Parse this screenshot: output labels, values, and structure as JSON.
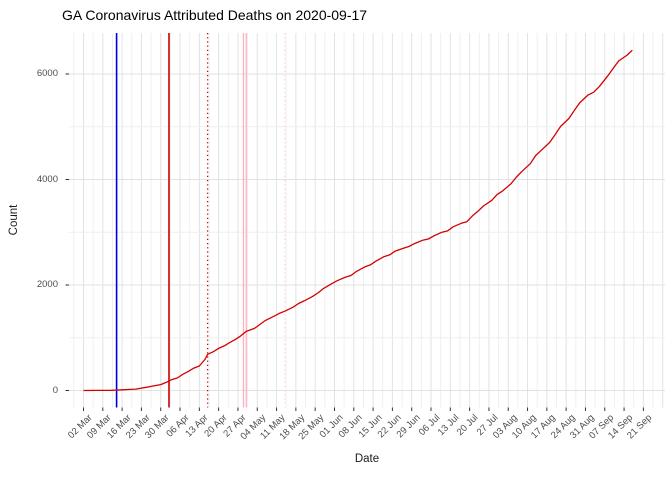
{
  "page": {
    "title": "GA Coronavirus Attributed Deaths on 2020-09-17"
  },
  "chart_data": {
    "type": "line",
    "title": "GA Coronavirus Attributed Deaths on 2020-09-17",
    "xlabel": "Date",
    "ylabel": "Count",
    "grid": true,
    "legend": false,
    "x_start_date": "2020-03-02",
    "x_end_date": "2020-09-21",
    "x_tick_labels": [
      "02 Mar",
      "09 Mar",
      "16 Mar",
      "23 Mar",
      "30 Mar",
      "06 Apr",
      "13 Apr",
      "20 Apr",
      "27 Apr",
      "04 May",
      "11 May",
      "18 May",
      "25 May",
      "01 Jun",
      "08 Jun",
      "15 Jun",
      "22 Jun",
      "29 Jun",
      "06 Jul",
      "13 Jul",
      "20 Jul",
      "27 Jul",
      "03 Aug",
      "10 Aug",
      "17 Aug",
      "24 Aug",
      "31 Aug",
      "07 Sep",
      "14 Sep",
      "21 Sep"
    ],
    "y_ticks": [
      0,
      2000,
      4000,
      6000
    ],
    "y_minor_ticks": [
      1000,
      3000,
      5000
    ],
    "ylim": [
      -320,
      6780
    ],
    "line_color": "#d40000",
    "grid_major_color": "#e2e2e2",
    "grid_minor_color": "#efefef",
    "vlines": [
      {
        "name": "blue-solid-line",
        "date": "2020-03-14",
        "color": "#0000dd",
        "style": "solid",
        "width": 1.6
      },
      {
        "name": "red-solid-line",
        "date": "2020-04-02",
        "color": "#cc0000",
        "style": "solid",
        "width": 1.6
      },
      {
        "name": "red-dotted-line",
        "date": "2020-04-16",
        "color": "#cc0000",
        "style": "dotted",
        "width": 1.3
      },
      {
        "name": "pink-solid-line-1",
        "date": "2020-04-29",
        "color": "#ffb0c0",
        "style": "solid",
        "width": 1.3
      },
      {
        "name": "pink-solid-line-2",
        "date": "2020-04-30",
        "color": "#ffb0c0",
        "style": "solid",
        "width": 1.3
      },
      {
        "name": "pink-dotted-line",
        "date": "2020-05-14",
        "color": "#ffd0da",
        "style": "dotted",
        "width": 1.3
      }
    ],
    "series": [
      {
        "name": "cumulative-deaths",
        "color": "#d40000",
        "points": [
          [
            "2020-03-02",
            0
          ],
          [
            "2020-03-07",
            1
          ],
          [
            "2020-03-12",
            3
          ],
          [
            "2020-03-14",
            8
          ],
          [
            "2020-03-16",
            14
          ],
          [
            "2020-03-19",
            21
          ],
          [
            "2020-03-21",
            26
          ],
          [
            "2020-03-23",
            46
          ],
          [
            "2020-03-25",
            63
          ],
          [
            "2020-03-27",
            83
          ],
          [
            "2020-03-30",
            111
          ],
          [
            "2020-04-01",
            154
          ],
          [
            "2020-04-03",
            207
          ],
          [
            "2020-04-05",
            237
          ],
          [
            "2020-04-07",
            308
          ],
          [
            "2020-04-09",
            362
          ],
          [
            "2020-04-11",
            425
          ],
          [
            "2020-04-13",
            465
          ],
          [
            "2020-04-15",
            587
          ],
          [
            "2020-04-16",
            687
          ],
          [
            "2020-04-18",
            733
          ],
          [
            "2020-04-20",
            799
          ],
          [
            "2020-04-22",
            846
          ],
          [
            "2020-04-24",
            908
          ],
          [
            "2020-04-26",
            964
          ],
          [
            "2020-04-28",
            1036
          ],
          [
            "2020-04-30",
            1120
          ],
          [
            "2020-05-03",
            1177
          ],
          [
            "2020-05-05",
            1254
          ],
          [
            "2020-05-07",
            1328
          ],
          [
            "2020-05-10",
            1406
          ],
          [
            "2020-05-12",
            1461
          ],
          [
            "2020-05-14",
            1503
          ],
          [
            "2020-05-17",
            1579
          ],
          [
            "2020-05-19",
            1649
          ],
          [
            "2020-05-21",
            1698
          ],
          [
            "2020-05-24",
            1780
          ],
          [
            "2020-05-26",
            1848
          ],
          [
            "2020-05-28",
            1932
          ],
          [
            "2020-05-31",
            2025
          ],
          [
            "2020-06-02",
            2081
          ],
          [
            "2020-06-05",
            2149
          ],
          [
            "2020-06-07",
            2180
          ],
          [
            "2020-06-09",
            2258
          ],
          [
            "2020-06-12",
            2344
          ],
          [
            "2020-06-14",
            2381
          ],
          [
            "2020-06-16",
            2451
          ],
          [
            "2020-06-19",
            2539
          ],
          [
            "2020-06-21",
            2570
          ],
          [
            "2020-06-23",
            2642
          ],
          [
            "2020-06-26",
            2698
          ],
          [
            "2020-06-28",
            2730
          ],
          [
            "2020-06-30",
            2784
          ],
          [
            "2020-07-03",
            2849
          ],
          [
            "2020-07-05",
            2872
          ],
          [
            "2020-07-07",
            2930
          ],
          [
            "2020-07-10",
            3001
          ],
          [
            "2020-07-12",
            3026
          ],
          [
            "2020-07-14",
            3104
          ],
          [
            "2020-07-17",
            3169
          ],
          [
            "2020-07-19",
            3200
          ],
          [
            "2020-07-21",
            3310
          ],
          [
            "2020-07-23",
            3398
          ],
          [
            "2020-07-25",
            3498
          ],
          [
            "2020-07-28",
            3603
          ],
          [
            "2020-07-30",
            3717
          ],
          [
            "2020-08-01",
            3784
          ],
          [
            "2020-08-04",
            3921
          ],
          [
            "2020-08-06",
            4048
          ],
          [
            "2020-08-08",
            4156
          ],
          [
            "2020-08-11",
            4299
          ],
          [
            "2020-08-13",
            4456
          ],
          [
            "2020-08-15",
            4553
          ],
          [
            "2020-08-18",
            4702
          ],
          [
            "2020-08-20",
            4849
          ],
          [
            "2020-08-22",
            5006
          ],
          [
            "2020-08-25",
            5156
          ],
          [
            "2020-08-27",
            5311
          ],
          [
            "2020-08-29",
            5458
          ],
          [
            "2020-09-01",
            5604
          ],
          [
            "2020-09-03",
            5655
          ],
          [
            "2020-09-05",
            5760
          ],
          [
            "2020-09-08",
            5958
          ],
          [
            "2020-09-10",
            6102
          ],
          [
            "2020-09-12",
            6246
          ],
          [
            "2020-09-15",
            6353
          ],
          [
            "2020-09-17",
            6452
          ]
        ]
      }
    ]
  }
}
